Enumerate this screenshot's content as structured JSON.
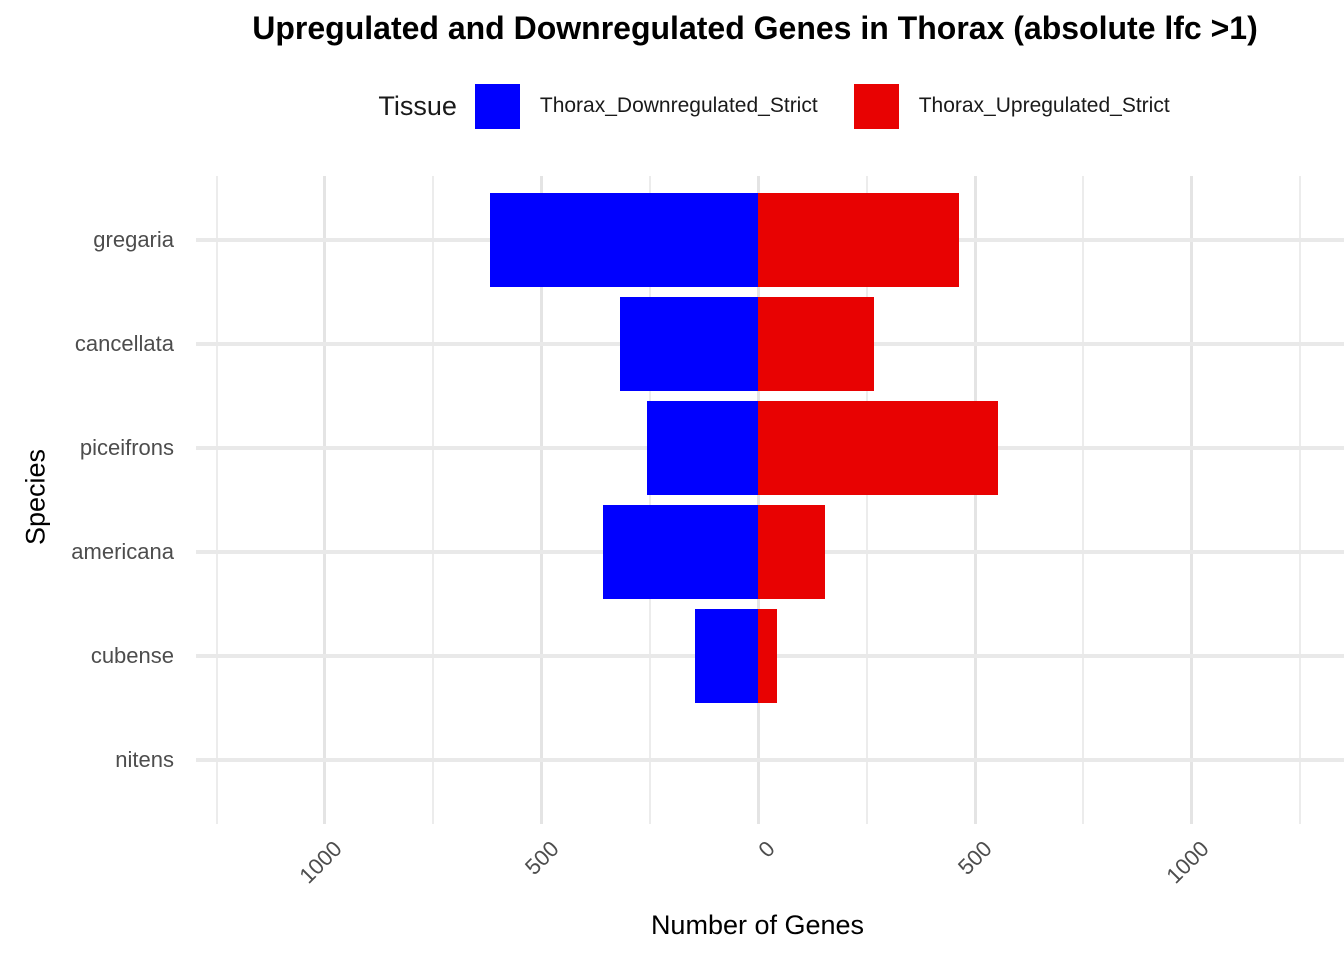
{
  "title": "Upregulated and Downregulated Genes in Thorax (absolute lfc >1)",
  "legend": {
    "title": "Tissue",
    "items": [
      {
        "label": "Thorax_Downregulated_Strict",
        "color": "#0000ff"
      },
      {
        "label": "Thorax_Upregulated_Strict",
        "color": "#e80202"
      }
    ]
  },
  "chart_data": {
    "type": "bar",
    "variant": "horizontal-diverging",
    "title": "Upregulated and Downregulated Genes in Thorax (absolute lfc >1)",
    "xlabel": "Number of Genes",
    "ylabel": "Species",
    "categories": [
      "gregaria",
      "cancellata",
      "piceifrons",
      "americana",
      "cubense",
      "nitens"
    ],
    "series": [
      {
        "name": "Thorax_Downregulated_Strict",
        "color": "#0000ff",
        "direction": "negative",
        "values": [
          618,
          319,
          256,
          359,
          146,
          0
        ]
      },
      {
        "name": "Thorax_Upregulated_Strict",
        "color": "#e80202",
        "direction": "positive",
        "values": [
          462,
          268,
          553,
          154,
          43,
          0
        ]
      }
    ],
    "xlim": [
      -1250,
      1250
    ],
    "x_ticks": [
      {
        "value": -1000,
        "label": "1000"
      },
      {
        "value": -500,
        "label": "500"
      },
      {
        "value": 0,
        "label": "0"
      },
      {
        "value": 500,
        "label": "500"
      },
      {
        "value": 1000,
        "label": "1000"
      }
    ],
    "minor_tick_step": 250,
    "grid": true,
    "legend_position": "top",
    "background": "#ffffff"
  }
}
